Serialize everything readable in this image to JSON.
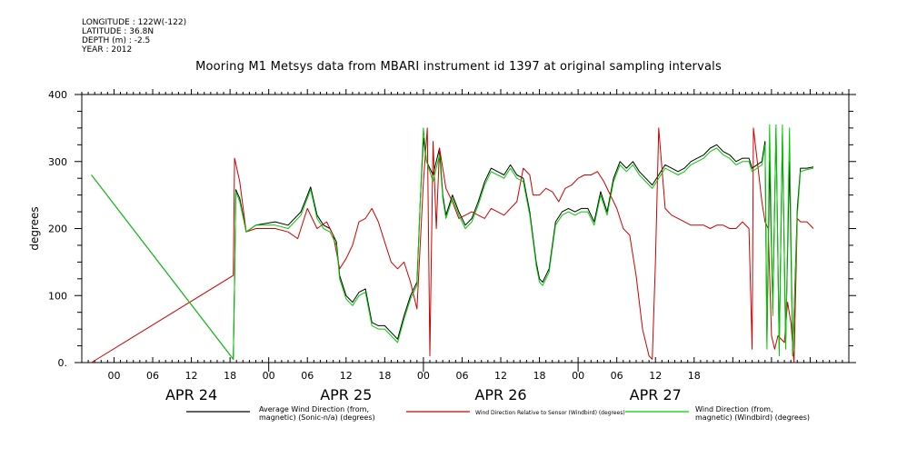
{
  "metadata": [
    "LONGITUDE : 122W(-122)",
    "LATITUDE : 36.8N",
    "DEPTH (m) : -2.5",
    "YEAR : 2012"
  ],
  "chart_data": {
    "type": "line",
    "title": "Mooring M1 Metsys data from MBARI instrument id 1397 at original sampling intervals",
    "ylabel": "degrees",
    "xlabel": "",
    "ylim": [
      0,
      400
    ],
    "yticks": [
      0,
      100,
      200,
      300,
      400
    ],
    "xlim_hours": [
      -5,
      114
    ],
    "hour_ticks": [
      {
        "t": 0,
        "label": "00"
      },
      {
        "t": 6,
        "label": "06"
      },
      {
        "t": 12,
        "label": "12"
      },
      {
        "t": 18,
        "label": "18"
      },
      {
        "t": 24,
        "label": "00"
      },
      {
        "t": 30,
        "label": "06"
      },
      {
        "t": 36,
        "label": "12"
      },
      {
        "t": 42,
        "label": "18"
      },
      {
        "t": 48,
        "label": "00"
      },
      {
        "t": 54,
        "label": "06"
      },
      {
        "t": 60,
        "label": "12"
      },
      {
        "t": 66,
        "label": "18"
      },
      {
        "t": 72,
        "label": "00"
      },
      {
        "t": 78,
        "label": "06"
      },
      {
        "t": 84,
        "label": "12"
      },
      {
        "t": 90,
        "label": "18"
      }
    ],
    "day_labels": [
      {
        "t": 12,
        "label": "APR 24"
      },
      {
        "t": 36,
        "label": "APR 25"
      },
      {
        "t": 60,
        "label": "APR 26"
      },
      {
        "t": 84,
        "label": "APR 27"
      }
    ],
    "x_unit": "hours since 2012-04-24 00:00",
    "series": [
      {
        "name": "Average Wind Direction (from, magnetic) (Sonic-n/a) (degrees)",
        "color": "#000000",
        "points": [
          [
            -3.5,
            280
          ],
          [
            18.5,
            5
          ],
          [
            18.7,
            120
          ],
          [
            18.9,
            258
          ],
          [
            19.5,
            245
          ],
          [
            20.5,
            195
          ],
          [
            22,
            205
          ],
          [
            25,
            210
          ],
          [
            27,
            205
          ],
          [
            29,
            225
          ],
          [
            30.5,
            262
          ],
          [
            31.5,
            220
          ],
          [
            32.5,
            205
          ],
          [
            33.5,
            200
          ],
          [
            34.5,
            180
          ],
          [
            35,
            130
          ],
          [
            36,
            100
          ],
          [
            37,
            90
          ],
          [
            38,
            105
          ],
          [
            39,
            110
          ],
          [
            40,
            60
          ],
          [
            41,
            55
          ],
          [
            42,
            55
          ],
          [
            43,
            45
          ],
          [
            44,
            35
          ],
          [
            45,
            70
          ],
          [
            46,
            100
          ],
          [
            47,
            120
          ],
          [
            47.5,
            240
          ],
          [
            48,
            335
          ],
          [
            48.5,
            300
          ],
          [
            49.5,
            280
          ],
          [
            50.5,
            320
          ],
          [
            51,
            250
          ],
          [
            51.5,
            220
          ],
          [
            52.5,
            250
          ],
          [
            53.5,
            225
          ],
          [
            54.5,
            205
          ],
          [
            55.5,
            215
          ],
          [
            56.5,
            240
          ],
          [
            57.5,
            270
          ],
          [
            58.5,
            290
          ],
          [
            59.5,
            285
          ],
          [
            60.5,
            280
          ],
          [
            61.5,
            295
          ],
          [
            62.5,
            280
          ],
          [
            63.5,
            275
          ],
          [
            64.5,
            225
          ],
          [
            65.5,
            150
          ],
          [
            66,
            125
          ],
          [
            66.5,
            120
          ],
          [
            67.5,
            140
          ],
          [
            68.5,
            210
          ],
          [
            69.5,
            225
          ],
          [
            70.5,
            230
          ],
          [
            71.5,
            225
          ],
          [
            72.5,
            230
          ],
          [
            73.5,
            230
          ],
          [
            74.5,
            210
          ],
          [
            75.5,
            255
          ],
          [
            76.5,
            225
          ],
          [
            77.5,
            275
          ],
          [
            78.5,
            300
          ],
          [
            79.5,
            290
          ],
          [
            80.5,
            300
          ],
          [
            81.5,
            285
          ],
          [
            82.5,
            275
          ],
          [
            83.5,
            265
          ],
          [
            84.5,
            280
          ],
          [
            85.5,
            295
          ],
          [
            86.5,
            290
          ],
          [
            87.5,
            285
          ],
          [
            88.5,
            290
          ],
          [
            89.5,
            300
          ],
          [
            90.5,
            305
          ],
          [
            91.5,
            310
          ],
          [
            92.5,
            320
          ],
          [
            93.5,
            325
          ],
          [
            94.5,
            315
          ],
          [
            95.5,
            310
          ],
          [
            96.5,
            300
          ],
          [
            97.5,
            305
          ],
          [
            98.5,
            305
          ],
          [
            99,
            290
          ],
          [
            100.5,
            300
          ],
          [
            101,
            330
          ],
          [
            101.3,
            30
          ],
          [
            101.7,
            300
          ],
          [
            102.2,
            80
          ],
          [
            102.7,
            350
          ],
          [
            103.2,
            20
          ],
          [
            103.7,
            340
          ],
          [
            104.2,
            30
          ],
          [
            104.8,
            300
          ],
          [
            105.3,
            10
          ],
          [
            106,
            230
          ],
          [
            106.5,
            290
          ],
          [
            107.5,
            290
          ],
          [
            108.5,
            292
          ]
        ]
      },
      {
        "name": "Wind Direction Relative to Sensor (Windbird) (degrees)",
        "color": "#cc0000",
        "points": [
          [
            -3.5,
            0
          ],
          [
            18.5,
            130
          ],
          [
            18.7,
            305
          ],
          [
            19.5,
            270
          ],
          [
            20.5,
            195
          ],
          [
            22,
            200
          ],
          [
            25,
            200
          ],
          [
            27,
            195
          ],
          [
            28.5,
            185
          ],
          [
            30,
            230
          ],
          [
            31.5,
            200
          ],
          [
            33,
            210
          ],
          [
            34,
            190
          ],
          [
            35,
            140
          ],
          [
            36,
            155
          ],
          [
            37,
            175
          ],
          [
            38,
            210
          ],
          [
            39,
            215
          ],
          [
            40,
            230
          ],
          [
            41,
            210
          ],
          [
            42,
            180
          ],
          [
            43,
            150
          ],
          [
            44,
            140
          ],
          [
            45,
            150
          ],
          [
            46,
            120
          ],
          [
            47,
            80
          ],
          [
            48,
            270
          ],
          [
            48.6,
            350
          ],
          [
            49,
            10
          ],
          [
            49.5,
            330
          ],
          [
            50,
            200
          ],
          [
            50.5,
            320
          ],
          [
            51.5,
            260
          ],
          [
            52.5,
            240
          ],
          [
            53.5,
            215
          ],
          [
            54.5,
            220
          ],
          [
            55.5,
            225
          ],
          [
            56.5,
            220
          ],
          [
            57.5,
            215
          ],
          [
            58.5,
            230
          ],
          [
            59.5,
            225
          ],
          [
            60.5,
            220
          ],
          [
            61.5,
            230
          ],
          [
            62.5,
            240
          ],
          [
            63.5,
            290
          ],
          [
            64.5,
            280
          ],
          [
            65,
            250
          ],
          [
            66,
            250
          ],
          [
            67,
            260
          ],
          [
            68,
            255
          ],
          [
            69,
            240
          ],
          [
            70,
            260
          ],
          [
            71,
            265
          ],
          [
            72,
            275
          ],
          [
            73,
            280
          ],
          [
            74,
            280
          ],
          [
            75,
            285
          ],
          [
            76,
            270
          ],
          [
            77,
            250
          ],
          [
            78,
            230
          ],
          [
            79,
            200
          ],
          [
            80,
            190
          ],
          [
            81,
            130
          ],
          [
            82,
            50
          ],
          [
            83,
            10
          ],
          [
            83.5,
            5
          ],
          [
            84,
            150
          ],
          [
            84.5,
            350
          ],
          [
            85.5,
            230
          ],
          [
            86.5,
            220
          ],
          [
            87.5,
            215
          ],
          [
            88.5,
            210
          ],
          [
            89.5,
            205
          ],
          [
            90.5,
            205
          ],
          [
            91.5,
            205
          ],
          [
            92.5,
            200
          ],
          [
            93.5,
            205
          ],
          [
            94.5,
            205
          ],
          [
            95.5,
            200
          ],
          [
            96.5,
            200
          ],
          [
            97.5,
            210
          ],
          [
            98.5,
            200
          ],
          [
            99,
            20
          ],
          [
            99.2,
            350
          ],
          [
            99.8,
            300
          ],
          [
            100.5,
            240
          ],
          [
            101,
            210
          ],
          [
            101.5,
            200
          ],
          [
            102,
            40
          ],
          [
            102.5,
            20
          ],
          [
            103,
            40
          ],
          [
            104,
            30
          ],
          [
            104.5,
            90
          ],
          [
            105,
            60
          ],
          [
            105.5,
            0
          ],
          [
            106,
            215
          ],
          [
            106.5,
            210
          ],
          [
            107.5,
            210
          ],
          [
            108.5,
            200
          ]
        ]
      },
      {
        "name": "Wind Direction (from, magnetic) (Windbird) (degrees)",
        "color": "#00cc00",
        "points": [
          [
            -3.5,
            280
          ],
          [
            18.5,
            5
          ],
          [
            18.7,
            120
          ],
          [
            18.9,
            255
          ],
          [
            19.5,
            240
          ],
          [
            20.5,
            195
          ],
          [
            22,
            205
          ],
          [
            25,
            205
          ],
          [
            27,
            200
          ],
          [
            29,
            220
          ],
          [
            30.5,
            258
          ],
          [
            31.5,
            215
          ],
          [
            32.5,
            200
          ],
          [
            33.5,
            195
          ],
          [
            34.5,
            175
          ],
          [
            35,
            125
          ],
          [
            36,
            95
          ],
          [
            37,
            85
          ],
          [
            38,
            100
          ],
          [
            39,
            105
          ],
          [
            40,
            55
          ],
          [
            41,
            50
          ],
          [
            42,
            50
          ],
          [
            43,
            40
          ],
          [
            44,
            30
          ],
          [
            45,
            65
          ],
          [
            46,
            95
          ],
          [
            47,
            115
          ],
          [
            47.5,
            240
          ],
          [
            48,
            350
          ],
          [
            48.5,
            300
          ],
          [
            49.5,
            270
          ],
          [
            50.5,
            310
          ],
          [
            51,
            245
          ],
          [
            51.5,
            215
          ],
          [
            52.5,
            245
          ],
          [
            53.5,
            220
          ],
          [
            54.5,
            200
          ],
          [
            55.5,
            210
          ],
          [
            56.5,
            235
          ],
          [
            57.5,
            265
          ],
          [
            58.5,
            285
          ],
          [
            59.5,
            280
          ],
          [
            60.5,
            275
          ],
          [
            61.5,
            290
          ],
          [
            62.5,
            275
          ],
          [
            63.5,
            270
          ],
          [
            64.5,
            220
          ],
          [
            65.5,
            145
          ],
          [
            66,
            120
          ],
          [
            66.5,
            115
          ],
          [
            67.5,
            135
          ],
          [
            68.5,
            205
          ],
          [
            69.5,
            220
          ],
          [
            70.5,
            225
          ],
          [
            71.5,
            220
          ],
          [
            72.5,
            225
          ],
          [
            73.5,
            225
          ],
          [
            74.5,
            205
          ],
          [
            75.5,
            250
          ],
          [
            76.5,
            220
          ],
          [
            77.5,
            270
          ],
          [
            78.5,
            295
          ],
          [
            79.5,
            285
          ],
          [
            80.5,
            295
          ],
          [
            81.5,
            280
          ],
          [
            82.5,
            270
          ],
          [
            83.5,
            260
          ],
          [
            84.5,
            275
          ],
          [
            85.5,
            290
          ],
          [
            86.5,
            285
          ],
          [
            87.5,
            280
          ],
          [
            88.5,
            285
          ],
          [
            89.5,
            295
          ],
          [
            90.5,
            300
          ],
          [
            91.5,
            305
          ],
          [
            92.5,
            315
          ],
          [
            93.5,
            320
          ],
          [
            94.5,
            310
          ],
          [
            95.5,
            305
          ],
          [
            96.5,
            295
          ],
          [
            97.5,
            300
          ],
          [
            98.5,
            300
          ],
          [
            99,
            285
          ],
          [
            100.5,
            295
          ],
          [
            101,
            325
          ],
          [
            101.3,
            20
          ],
          [
            101.7,
            355
          ],
          [
            102.2,
            70
          ],
          [
            102.7,
            355
          ],
          [
            103.2,
            10
          ],
          [
            103.7,
            355
          ],
          [
            104.2,
            20
          ],
          [
            104.8,
            350
          ],
          [
            105.3,
            10
          ],
          [
            106,
            220
          ],
          [
            106.5,
            285
          ],
          [
            107.5,
            288
          ],
          [
            108.5,
            290
          ]
        ]
      }
    ]
  },
  "legend": [
    {
      "line1": "Average Wind Direction (from,",
      "line2": "magnetic) (Sonic-n/a) (degrees)",
      "color": "#000000"
    },
    {
      "line1": "Wind Direction Relative to Sensor (Windbird) (degrees)",
      "line2": "",
      "color": "#cc0000"
    },
    {
      "line1": "Wind Direction (from,",
      "line2": "magnetic) (Windbird) (degrees)",
      "color": "#00cc00"
    }
  ]
}
